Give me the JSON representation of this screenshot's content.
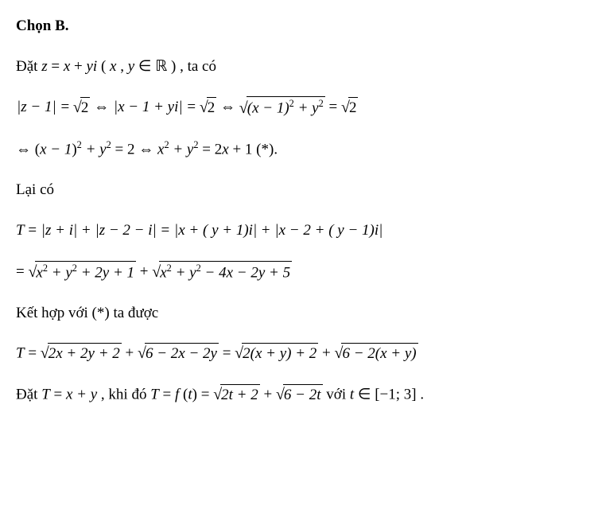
{
  "line1": {
    "text": "Chọn B."
  },
  "line2": {
    "pre": "Đặt ",
    "z": "z",
    "eq": " = ",
    "x": "x",
    "plus": " + ",
    "yi": "yi",
    "open": "(",
    "xv": "x",
    "comma": ", ",
    "yv": "y",
    "in": " ∈ ",
    "R": "ℝ",
    "close": ")",
    "post": ", ta có"
  },
  "line3": {
    "lhs_abs": "z − 1",
    "eq1": " = ",
    "sqrt2a": "2",
    "iff1": " ⇔ ",
    "mid_abs": "x − 1 + yi",
    "eq2": " = ",
    "sqrt2b": "2",
    "iff2": " ⇔ ",
    "radicand": "(x − 1)",
    "exp2": "2",
    "plus": " + y",
    "y_exp": "2",
    "eq3": " = ",
    "sqrt2c": "2"
  },
  "line4": {
    "iff": "⇔ ",
    "open": "(",
    "inner": "x − 1",
    "close": ")",
    "exp2a": "2",
    "plus1": " + y",
    "exp2b": "2",
    "eq1": " = 2 ⇔ ",
    "x": "x",
    "exp2c": "2",
    "plus2": " + y",
    "exp2d": "2",
    "eq2": " = 2",
    "xv": "x",
    "plus3": " + 1 (*)."
  },
  "line5": {
    "text": "Lại có"
  },
  "line6": {
    "T": "T",
    "eq": " = ",
    "abs1": "z + i",
    "pl1": " + ",
    "abs2": "z − 2 − i",
    "eq2": " = ",
    "abs3": "x + ( y + 1)i",
    "pl2": " + ",
    "abs4": "x − 2 + ( y − 1)i"
  },
  "line7": {
    "eq": "= ",
    "rad1_a": "x",
    "rad1_a_exp": "2",
    "rad1_b": " + y",
    "rad1_b_exp": "2",
    "rad1_c": " + 2y + 1",
    "pl": " + ",
    "rad2_a": "x",
    "rad2_a_exp": "2",
    "rad2_b": " + y",
    "rad2_b_exp": "2",
    "rad2_c": " − 4x − 2y + 5"
  },
  "line8": {
    "text": "Kết hợp với (*) ta được"
  },
  "line9": {
    "T": "T",
    "eq": " = ",
    "rad1": "2x + 2y + 2",
    "pl1": " + ",
    "rad2": "6 − 2x − 2y",
    "eq2": " = ",
    "rad3": "2(x + y) + 2",
    "pl2": " + ",
    "rad4": "6 − 2(x + y)"
  },
  "line10": {
    "pre": "Đặt ",
    "T": "T",
    "eq1": " = ",
    "xy": "x + y",
    "mid": ", khi đó ",
    "T2": "T",
    "eq2": " = ",
    "f": "f",
    "open": "(",
    "t": "t",
    "close": ")",
    "eq3": " = ",
    "rad1": "2t + 2",
    "pl": " + ",
    "rad2": "6 − 2t",
    "post1": "  với ",
    "tv": "t",
    "in": " ∈",
    "interval": "[−1; 3]",
    "dot": "."
  }
}
